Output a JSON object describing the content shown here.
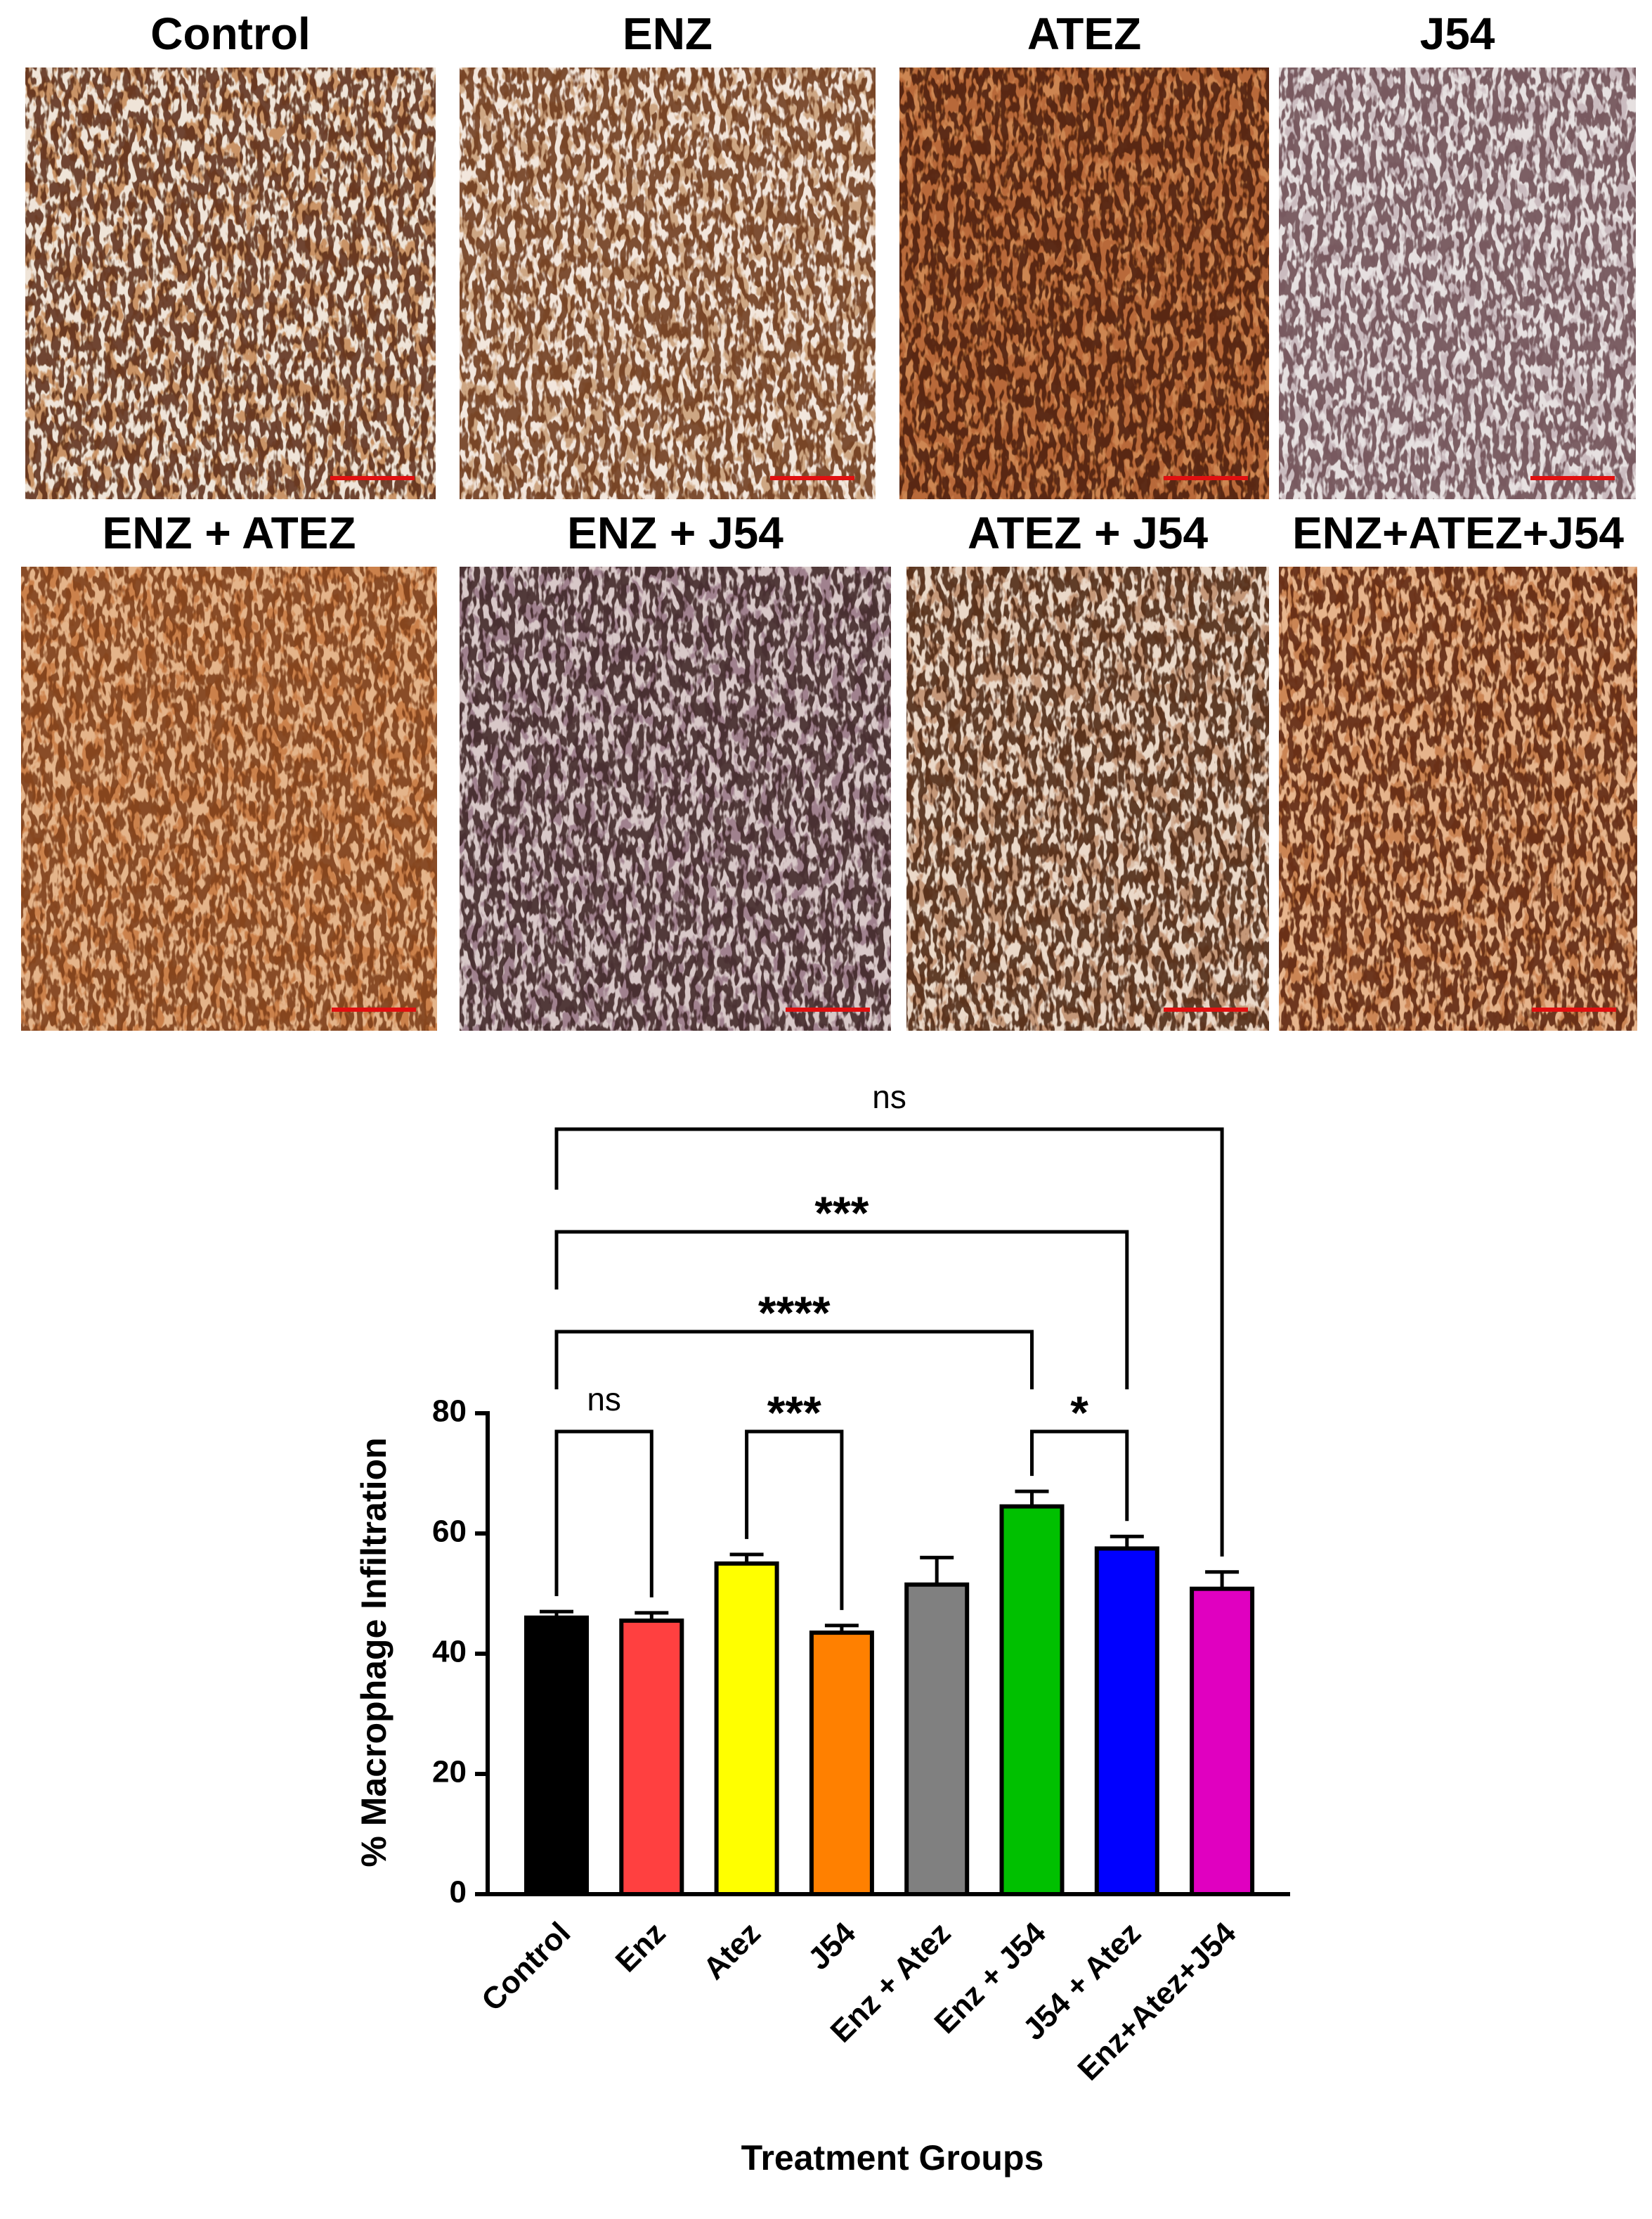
{
  "panels": [
    "Control",
    "ENZ",
    "ATEZ",
    "J54",
    "ENZ + ATEZ",
    "ENZ + J54",
    "ATEZ + J54",
    "ENZ+ATEZ+J54"
  ],
  "chart_data": {
    "type": "bar",
    "ylabel": "% Macrophage Infiltration",
    "xlabel": "Treatment Groups",
    "categories": [
      "Control",
      "Enz",
      "Atez",
      "J54",
      "Enz + Atez",
      "Enz + J54",
      "J54 + Atez",
      "Enz+Atez+J54"
    ],
    "values": [
      46,
      45.5,
      55,
      43.5,
      51.5,
      64.5,
      57.5,
      50.8
    ],
    "errors": [
      1,
      1.3,
      1.5,
      1.2,
      4.5,
      2.5,
      2,
      2.8
    ],
    "colors": [
      "#000000",
      "#ff4040",
      "#ffff00",
      "#ff8000",
      "#808080",
      "#00c000",
      "#0000ff",
      "#e000c0"
    ],
    "ylim": [
      0,
      80
    ],
    "yticks": [
      0,
      20,
      40,
      60,
      80
    ],
    "comparisons": [
      {
        "groups": [
          "Control",
          "Enz"
        ],
        "label": "ns"
      },
      {
        "groups": [
          "Atez",
          "J54"
        ],
        "label": "***"
      },
      {
        "groups": [
          "Enz + J54",
          "J54 + Atez"
        ],
        "label": "*"
      },
      {
        "groups": [
          "Control",
          "Enz + J54"
        ],
        "label": "****"
      },
      {
        "groups": [
          "Control",
          "J54 + Atez"
        ],
        "label": "***"
      },
      {
        "groups": [
          "Control",
          "Enz+Atez+J54"
        ],
        "label": "ns"
      }
    ]
  }
}
